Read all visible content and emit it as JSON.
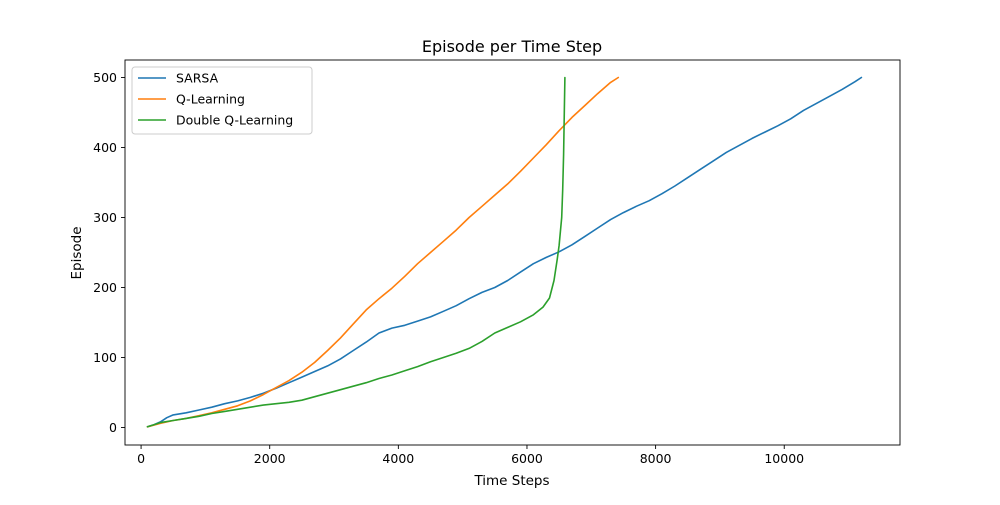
{
  "chart_data": {
    "type": "line",
    "title": "Episode per Time Step",
    "xlabel": "Time Steps",
    "ylabel": "Episode",
    "xlim": [
      -250,
      11800
    ],
    "ylim": [
      -25,
      525
    ],
    "xticks": [
      0,
      2000,
      4000,
      6000,
      8000,
      10000
    ],
    "yticks": [
      0,
      100,
      200,
      300,
      400,
      500
    ],
    "grid": false,
    "legend_position": "top-left",
    "series": [
      {
        "name": "SARSA",
        "color": "#1f77b4",
        "x": [
          100,
          200,
          300,
          400,
          500,
          700,
          900,
          1100,
          1300,
          1500,
          1700,
          1900,
          2100,
          2300,
          2500,
          2700,
          2900,
          3100,
          3300,
          3500,
          3700,
          3900,
          4100,
          4300,
          4500,
          4700,
          4900,
          5100,
          5300,
          5500,
          5700,
          5900,
          6100,
          6300,
          6500,
          6700,
          6900,
          7100,
          7300,
          7500,
          7700,
          7900,
          8100,
          8300,
          8500,
          8700,
          8900,
          9100,
          9300,
          9500,
          9700,
          9900,
          10100,
          10300,
          10500,
          10700,
          10900,
          11100,
          11200
        ],
        "y": [
          1,
          4,
          8,
          14,
          18,
          21,
          25,
          29,
          34,
          38,
          43,
          49,
          56,
          64,
          72,
          80,
          88,
          98,
          110,
          122,
          135,
          142,
          146,
          152,
          158,
          166,
          174,
          184,
          193,
          200,
          210,
          222,
          234,
          243,
          251,
          261,
          273,
          285,
          297,
          307,
          316,
          324,
          334,
          345,
          357,
          369,
          381,
          393,
          403,
          413,
          422,
          431,
          441,
          453,
          463,
          473,
          483,
          494,
          500
        ]
      },
      {
        "name": "Q-Learning",
        "color": "#ff7f0e",
        "x": [
          100,
          300,
          500,
          700,
          900,
          1100,
          1300,
          1500,
          1700,
          1900,
          2100,
          2300,
          2500,
          2700,
          2900,
          3100,
          3300,
          3500,
          3700,
          3900,
          4100,
          4300,
          4500,
          4700,
          4900,
          5100,
          5300,
          5500,
          5700,
          5900,
          6100,
          6300,
          6500,
          6700,
          6900,
          7100,
          7300,
          7420
        ],
        "y": [
          1,
          6,
          10,
          13,
          17,
          21,
          26,
          31,
          38,
          47,
          57,
          67,
          79,
          93,
          110,
          128,
          148,
          168,
          184,
          199,
          216,
          234,
          250,
          266,
          282,
          300,
          316,
          332,
          348,
          366,
          385,
          404,
          424,
          443,
          460,
          477,
          493,
          500
        ]
      },
      {
        "name": "Double Q-Learning",
        "color": "#2ca02c",
        "x": [
          100,
          200,
          300,
          500,
          700,
          900,
          1100,
          1300,
          1500,
          1700,
          1900,
          2100,
          2300,
          2500,
          2700,
          2900,
          3100,
          3300,
          3500,
          3700,
          3900,
          4100,
          4300,
          4500,
          4700,
          4900,
          5100,
          5300,
          5500,
          5700,
          5900,
          6100,
          6250,
          6350,
          6420,
          6470,
          6500,
          6520,
          6540,
          6555,
          6570,
          6580,
          6590
        ],
        "y": [
          1,
          4,
          7,
          10,
          13,
          16,
          20,
          23,
          26,
          29,
          32,
          34,
          36,
          39,
          44,
          49,
          54,
          59,
          64,
          70,
          75,
          81,
          87,
          94,
          100,
          106,
          113,
          123,
          135,
          143,
          151,
          161,
          172,
          185,
          210,
          240,
          260,
          280,
          300,
          340,
          390,
          450,
          500
        ]
      }
    ]
  }
}
